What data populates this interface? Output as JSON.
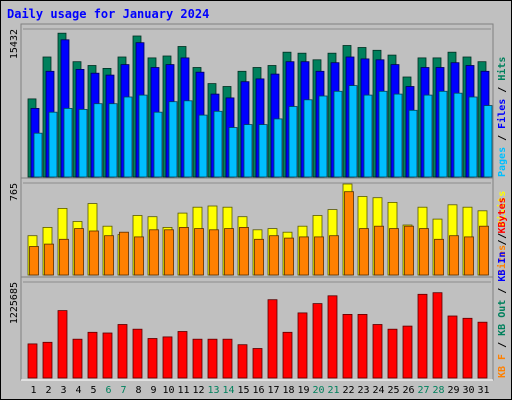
{
  "chart_data": {
    "type": "bar",
    "title": "Daily usage for January 2024",
    "categories": [
      "1",
      "2",
      "3",
      "4",
      "5",
      "6",
      "7",
      "8",
      "9",
      "10",
      "11",
      "12",
      "13",
      "14",
      "15",
      "16",
      "17",
      "18",
      "19",
      "20",
      "21",
      "22",
      "23",
      "24",
      "25",
      "26",
      "27",
      "28",
      "29",
      "30",
      "31"
    ],
    "weekend_days": [
      6,
      7,
      13,
      14,
      20,
      21,
      27,
      28
    ],
    "panels": [
      {
        "id": "hits",
        "y_max_label": "15432",
        "y_max": 15432,
        "series": [
          {
            "name": "Hits",
            "color": "#00805c",
            "values": [
              8200,
              12600,
              15100,
              12100,
              11700,
              11400,
              12600,
              14800,
              12500,
              12700,
              13700,
              11500,
              9800,
              9500,
              11100,
              11500,
              11700,
              13100,
              13000,
              12300,
              13000,
              13800,
              13600,
              13300,
              12800,
              10500,
              12500,
              12500,
              13100,
              12600,
              12100
            ]
          },
          {
            "name": "Files",
            "color": "#0000ff",
            "values": [
              7200,
              11100,
              14400,
              11300,
              10900,
              10700,
              11800,
              14100,
              11500,
              11800,
              12500,
              11000,
              8700,
              8300,
              10000,
              10300,
              10800,
              12100,
              12100,
              11100,
              12000,
              12600,
              12400,
              12300,
              11800,
              9500,
              11500,
              11500,
              12000,
              11700,
              11100
            ]
          },
          {
            "name": "Pages",
            "color": "#00bfff",
            "values": [
              4600,
              6800,
              7200,
              7100,
              7700,
              7700,
              8400,
              8600,
              6800,
              7900,
              8000,
              6500,
              6900,
              5200,
              5500,
              5500,
              6100,
              7400,
              8100,
              8500,
              9000,
              9600,
              8600,
              9000,
              8700,
              7000,
              8600,
              9000,
              8800,
              8400,
              7500
            ]
          }
        ],
        "side_labels": [
          "Hits",
          "Files",
          "Pages"
        ]
      },
      {
        "id": "visits",
        "y_max_label": "765",
        "y_max": 765,
        "series": [
          {
            "name": "Visits",
            "color": "#ffff00",
            "values": [
              330,
              400,
              560,
              450,
              600,
              410,
              340,
              500,
              490,
              400,
              520,
              570,
              580,
              570,
              490,
              380,
              390,
              360,
              410,
              500,
              550,
              765,
              660,
              650,
              610,
              420,
              570,
              470,
              590,
              570,
              540
            ]
          },
          {
            "name": "Sites",
            "color": "#ff8000",
            "values": [
              240,
              260,
              300,
              390,
              370,
              330,
              360,
              320,
              380,
              380,
              400,
              390,
              380,
              390,
              400,
              300,
              330,
              310,
              320,
              320,
              330,
              700,
              390,
              410,
              390,
              410,
              390,
              300,
              330,
              320,
              410
            ]
          }
        ],
        "side_labels": [
          "Visits",
          "Sites"
        ]
      },
      {
        "id": "kbytes",
        "y_max_label": "1225685",
        "y_max": 1225685,
        "series": [
          {
            "name": "KBytes",
            "color": "#ff0000",
            "values": [
              440000,
              460000,
              870000,
              500000,
              590000,
              580000,
              690000,
              630000,
              510000,
              530000,
              600000,
              500000,
              500000,
              500000,
              430000,
              380000,
              1010000,
              590000,
              840000,
              960000,
              1060000,
              820000,
              820000,
              690000,
              630000,
              670000,
              1080000,
              1100000,
              800000,
              770000,
              720000
            ]
          }
        ],
        "side_labels": [
          "KBytes",
          "KB In",
          "KB Out",
          "KB F"
        ]
      }
    ]
  }
}
